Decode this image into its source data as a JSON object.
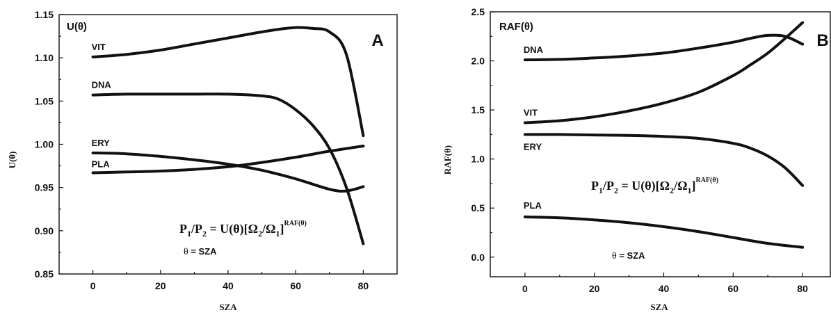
{
  "chart_data": [
    {
      "type": "line",
      "panel_label": "A",
      "title": "U(θ)",
      "xlabel": "SZA",
      "ylabel": "U(θ)",
      "xlim": [
        -10,
        90
      ],
      "ylim": [
        0.85,
        1.15
      ],
      "xticks": [
        0,
        20,
        40,
        60,
        80
      ],
      "yticks": [
        0.85,
        0.9,
        0.95,
        1.0,
        1.05,
        1.1,
        1.15
      ],
      "ytick_labels": [
        "0.85",
        "0.90",
        "0.95",
        "1.00",
        "1.05",
        "1.10",
        "1.15"
      ],
      "xtick_labels": [
        "0",
        "20",
        "40",
        "60",
        "80"
      ],
      "formula": {
        "lhs": "P",
        "s1": "1",
        "slash": "/P",
        "s2": "2",
        "eq": " = U(θ)[Ω",
        "s3": "2",
        "mid": "/Ω",
        "s4": "1",
        "close": "]",
        "exp": "RAF(θ)"
      },
      "note": {
        "theta": "θ",
        "text": " = SZA"
      },
      "grid": false,
      "series": [
        {
          "name": "VIT",
          "x": [
            0,
            10,
            20,
            30,
            40,
            50,
            55,
            60,
            65,
            70,
            75,
            80
          ],
          "y": [
            1.101,
            1.104,
            1.109,
            1.116,
            1.123,
            1.13,
            1.133,
            1.135,
            1.134,
            1.13,
            1.104,
            1.01
          ]
        },
        {
          "name": "DNA",
          "x": [
            0,
            10,
            20,
            30,
            40,
            50,
            55,
            60,
            65,
            70,
            75,
            80
          ],
          "y": [
            1.057,
            1.058,
            1.058,
            1.058,
            1.058,
            1.056,
            1.052,
            1.04,
            1.022,
            0.995,
            0.95,
            0.885
          ]
        },
        {
          "name": "ERY",
          "x": [
            0,
            10,
            20,
            30,
            40,
            50,
            60,
            70,
            75,
            80
          ],
          "y": [
            0.99,
            0.989,
            0.986,
            0.982,
            0.977,
            0.97,
            0.96,
            0.948,
            0.946,
            0.951
          ]
        },
        {
          "name": "PLA",
          "x": [
            0,
            10,
            20,
            30,
            40,
            50,
            60,
            70,
            80
          ],
          "y": [
            0.967,
            0.968,
            0.969,
            0.971,
            0.974,
            0.979,
            0.985,
            0.992,
            0.998
          ]
        }
      ]
    },
    {
      "type": "line",
      "panel_label": "B",
      "title": "RAF(θ)",
      "xlabel": "SZA",
      "ylabel": "RAF(θ)",
      "xlim": [
        -10,
        88
      ],
      "ylim": [
        -0.2,
        2.5
      ],
      "xticks": [
        0,
        20,
        40,
        60,
        80
      ],
      "yticks": [
        0.0,
        0.5,
        1.0,
        1.5,
        2.0,
        2.5
      ],
      "ytick_labels": [
        "0.0",
        "0.5",
        "1.0",
        "1.5",
        "2.0",
        "2.5"
      ],
      "xtick_labels": [
        "0",
        "20",
        "40",
        "60",
        "80"
      ],
      "formula": {
        "lhs": "P",
        "s1": "1",
        "slash": "/P",
        "s2": "2",
        "eq": " = U(θ)[Ω",
        "s3": "2",
        "mid": "/Ω",
        "s4": "1",
        "close": "]",
        "exp": "RAF(θ)"
      },
      "note": {
        "theta": "θ",
        "text": " = SZA"
      },
      "grid": false,
      "series": [
        {
          "name": "DNA",
          "x": [
            0,
            10,
            20,
            30,
            40,
            50,
            60,
            65,
            70,
            75,
            80
          ],
          "y": [
            2.01,
            2.015,
            2.03,
            2.05,
            2.08,
            2.13,
            2.19,
            2.23,
            2.26,
            2.25,
            2.17
          ]
        },
        {
          "name": "VIT",
          "x": [
            0,
            10,
            20,
            30,
            40,
            50,
            60,
            65,
            70,
            75,
            80
          ],
          "y": [
            1.37,
            1.39,
            1.43,
            1.49,
            1.57,
            1.68,
            1.85,
            1.96,
            2.08,
            2.23,
            2.39
          ]
        },
        {
          "name": "ERY",
          "x": [
            0,
            10,
            20,
            30,
            40,
            50,
            60,
            65,
            70,
            75,
            80
          ],
          "y": [
            1.25,
            1.25,
            1.245,
            1.24,
            1.23,
            1.21,
            1.16,
            1.11,
            1.03,
            0.91,
            0.73
          ]
        },
        {
          "name": "PLA",
          "x": [
            0,
            10,
            20,
            30,
            40,
            50,
            60,
            70,
            80
          ],
          "y": [
            0.41,
            0.4,
            0.38,
            0.35,
            0.31,
            0.26,
            0.2,
            0.14,
            0.1
          ]
        }
      ]
    }
  ]
}
